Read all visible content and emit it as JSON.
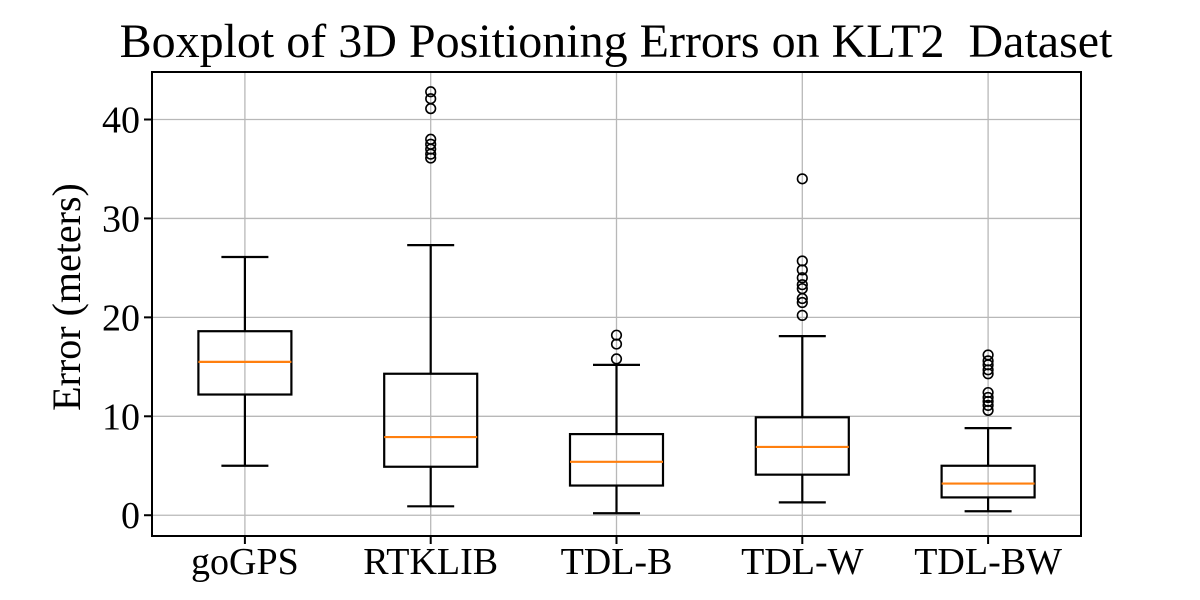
{
  "chart_data": {
    "type": "boxplot",
    "title": "Boxplot of 3D Positioning Errors on KLT2  Dataset",
    "xlabel": "",
    "ylabel": "Error (meters)",
    "categories": [
      "goGPS",
      "RTKLIB",
      "TDL-B",
      "TDL-W",
      "TDL-BW"
    ],
    "yticks": [
      0,
      10,
      20,
      30,
      40
    ],
    "ylim": [
      -2.1,
      44.8
    ],
    "grid": true,
    "legend": "none",
    "series": [
      {
        "name": "goGPS",
        "whislo": 5.0,
        "q1": 12.2,
        "med": 15.5,
        "q3": 18.6,
        "whishi": 26.1,
        "fliers": []
      },
      {
        "name": "RTKLIB",
        "whislo": 0.9,
        "q1": 4.9,
        "med": 7.9,
        "q3": 14.3,
        "whishi": 27.3,
        "fliers": [
          36.1,
          36.5,
          37.0,
          37.5,
          38.0,
          41.1,
          42.1,
          42.8
        ]
      },
      {
        "name": "TDL-B",
        "whislo": 0.2,
        "q1": 3.0,
        "med": 5.4,
        "q3": 8.2,
        "whishi": 15.2,
        "fliers": [
          15.8,
          17.3,
          18.2
        ]
      },
      {
        "name": "TDL-W",
        "whislo": 1.3,
        "q1": 4.1,
        "med": 6.9,
        "q3": 9.9,
        "whishi": 18.1,
        "fliers": [
          20.2,
          21.5,
          21.9,
          22.9,
          23.3,
          24.0,
          24.8,
          25.7,
          34.0
        ]
      },
      {
        "name": "TDL-BW",
        "whislo": 0.4,
        "q1": 1.8,
        "med": 3.2,
        "q3": 5.0,
        "whishi": 8.8,
        "fliers": [
          10.6,
          11.1,
          11.5,
          11.9,
          12.4,
          14.3,
          14.7,
          15.2,
          15.6,
          16.2
        ]
      }
    ],
    "colors": {
      "box_line": "#000000",
      "median": "#ff7f0e",
      "grid": "#b8b8b8",
      "spine": "#000000",
      "text": "#000000",
      "background": "#ffffff"
    }
  }
}
